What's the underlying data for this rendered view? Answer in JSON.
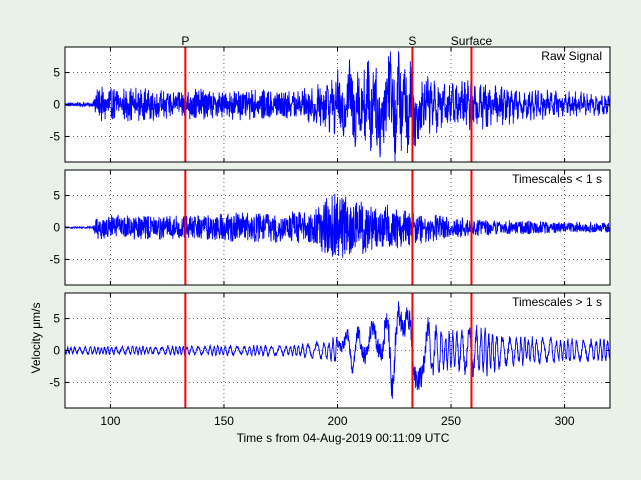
{
  "chart_data": {
    "type": "line",
    "xlabel": "Time s from 04-Aug-2019 00:11:09 UTC",
    "ylabel": "Velocity μm/s",
    "xlim": [
      80,
      320
    ],
    "xticks": [
      100,
      150,
      200,
      250,
      300
    ],
    "yticks": [
      -5,
      0,
      5
    ],
    "grid": true,
    "phase_markers": [
      {
        "label": "P",
        "x": 133
      },
      {
        "label": "S",
        "x": 233
      },
      {
        "label": "Surface",
        "x": 259
      }
    ],
    "marker_color": "#ff0000",
    "series_color": "#0000ff",
    "panels": [
      {
        "name": "raw",
        "label": "Raw Signal",
        "ylim": [
          -9,
          9
        ],
        "noise_start": 93,
        "envelope": [
          [
            80,
            0.5
          ],
          [
            92,
            0.5
          ],
          [
            94,
            2.5
          ],
          [
            110,
            2.5
          ],
          [
            130,
            2.3
          ],
          [
            150,
            2.2
          ],
          [
            185,
            2.3
          ],
          [
            195,
            3.5
          ],
          [
            205,
            6.5
          ],
          [
            215,
            7.5
          ],
          [
            225,
            8.5
          ],
          [
            232,
            7
          ],
          [
            240,
            4.5
          ],
          [
            250,
            3.5
          ],
          [
            265,
            4
          ],
          [
            280,
            2.5
          ],
          [
            300,
            2
          ],
          [
            320,
            1.8
          ]
        ],
        "period": [
          [
            80,
            0.5
          ],
          [
            180,
            0.5
          ],
          [
            195,
            1.2
          ],
          [
            240,
            1.6
          ],
          [
            320,
            1.6
          ]
        ]
      },
      {
        "name": "short",
        "label": "Timescales < 1 s",
        "ylim": [
          -9,
          9
        ],
        "noise_start": 93,
        "envelope": [
          [
            80,
            0.2
          ],
          [
            92,
            0.2
          ],
          [
            94,
            1.8
          ],
          [
            130,
            1.7
          ],
          [
            150,
            2
          ],
          [
            185,
            2.2
          ],
          [
            200,
            5
          ],
          [
            210,
            4
          ],
          [
            225,
            3
          ],
          [
            240,
            2
          ],
          [
            250,
            1.5
          ],
          [
            270,
            1.1
          ],
          [
            300,
            0.8
          ],
          [
            320,
            0.7
          ]
        ],
        "period": [
          [
            80,
            0.3
          ],
          [
            320,
            0.3
          ]
        ]
      },
      {
        "name": "long",
        "label": "Timescales > 1 s",
        "ylim": [
          -9,
          9
        ],
        "noise_start": 80,
        "envelope": [
          [
            80,
            0.6
          ],
          [
            180,
            0.9
          ],
          [
            195,
            1.5
          ],
          [
            205,
            3.5
          ],
          [
            215,
            5
          ],
          [
            225,
            7.5
          ],
          [
            232,
            7
          ],
          [
            240,
            5
          ],
          [
            250,
            3
          ],
          [
            262,
            4.5
          ],
          [
            275,
            2.5
          ],
          [
            300,
            2
          ],
          [
            320,
            1.7
          ]
        ],
        "period": [
          [
            80,
            1.5
          ],
          [
            200,
            1.8
          ],
          [
            240,
            2.2
          ],
          [
            320,
            2.2
          ]
        ]
      }
    ]
  }
}
